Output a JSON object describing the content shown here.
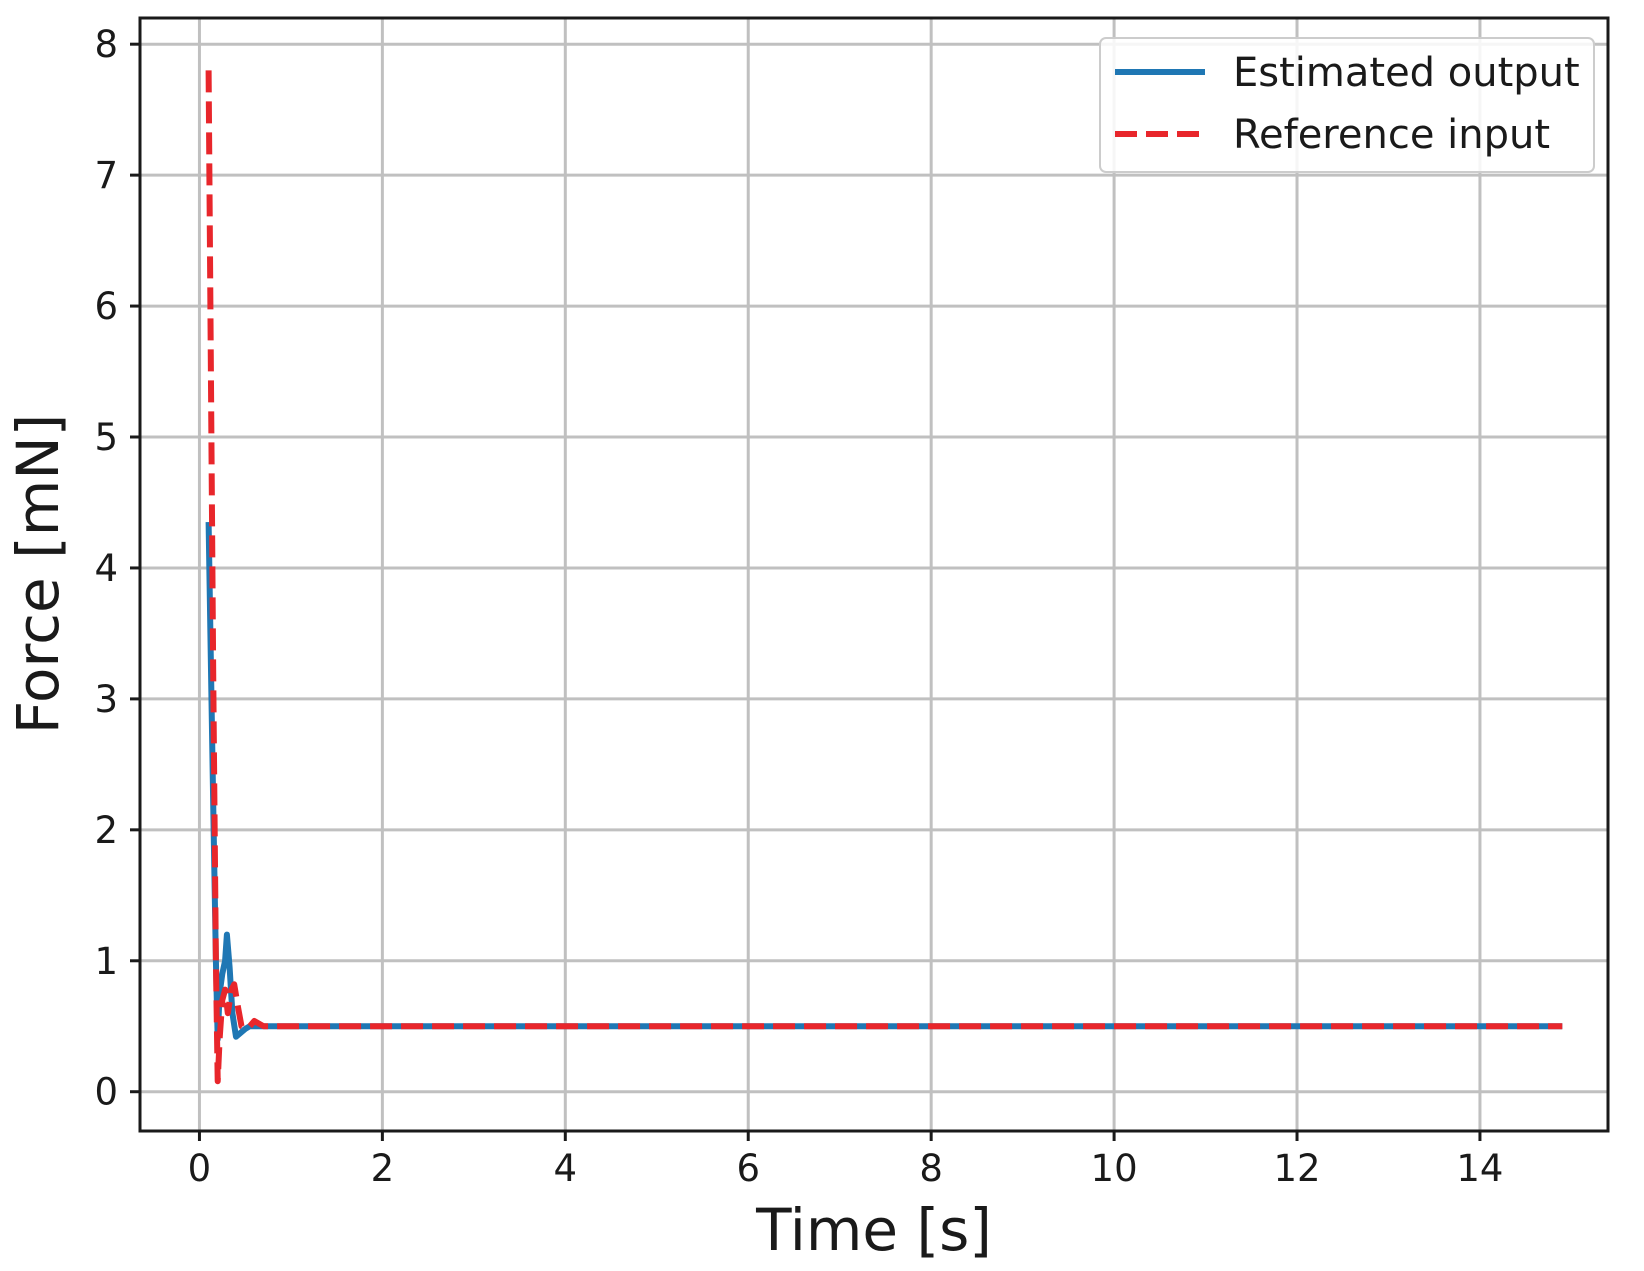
{
  "chart_data": {
    "type": "line",
    "xlabel": "Time [s]",
    "ylabel": "Force [mN]",
    "xlim": [
      -0.65,
      15.4
    ],
    "ylim": [
      -0.3,
      8.2
    ],
    "xticks": [
      0,
      2,
      4,
      6,
      8,
      10,
      12,
      14
    ],
    "yticks": [
      0,
      1,
      2,
      3,
      4,
      5,
      6,
      7,
      8
    ],
    "grid": true,
    "legend_position": "top-right",
    "series": [
      {
        "name": "Estimated output",
        "color": "#1f77b4",
        "style": "solid",
        "x": [
          0.1,
          0.12,
          0.15,
          0.18,
          0.2,
          0.22,
          0.25,
          0.28,
          0.3,
          0.33,
          0.36,
          0.4,
          0.45,
          0.5,
          0.55,
          0.6,
          0.7,
          1,
          2,
          4,
          6,
          8,
          10,
          12,
          14,
          14.9
        ],
        "y": [
          4.35,
          3.5,
          2.2,
          1.0,
          0.4,
          0.75,
          0.9,
          1.0,
          1.2,
          0.95,
          0.6,
          0.42,
          0.45,
          0.48,
          0.5,
          0.5,
          0.5,
          0.5,
          0.5,
          0.5,
          0.5,
          0.5,
          0.5,
          0.5,
          0.5,
          0.5
        ]
      },
      {
        "name": "Reference input",
        "color": "#e8262b",
        "style": "dashed",
        "x": [
          0.1,
          0.12,
          0.15,
          0.18,
          0.2,
          0.22,
          0.25,
          0.28,
          0.31,
          0.35,
          0.38,
          0.42,
          0.46,
          0.5,
          0.55,
          0.6,
          0.7,
          0.8,
          1,
          2,
          4,
          6,
          8,
          10,
          12,
          14,
          14.9
        ],
        "y": [
          7.8,
          6.0,
          3.2,
          1.0,
          0.08,
          0.4,
          0.7,
          0.78,
          0.6,
          0.78,
          0.82,
          0.65,
          0.5,
          0.48,
          0.5,
          0.54,
          0.5,
          0.5,
          0.5,
          0.5,
          0.5,
          0.5,
          0.5,
          0.5,
          0.5,
          0.5,
          0.5
        ]
      }
    ]
  }
}
